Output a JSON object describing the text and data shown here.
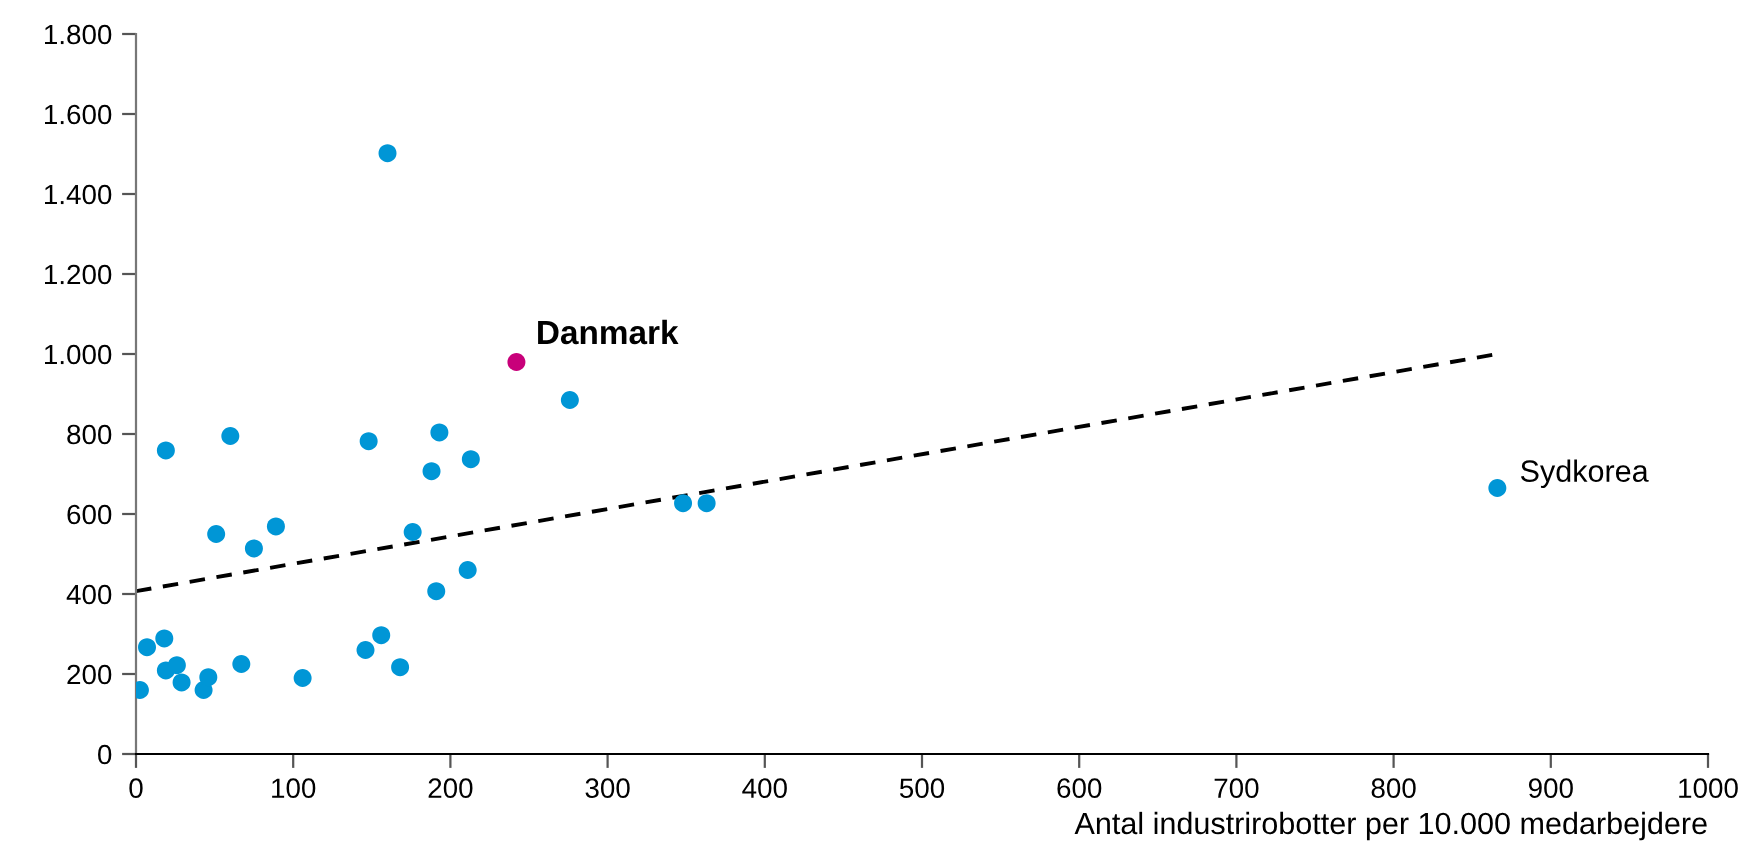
{
  "chart_data": {
    "type": "scatter",
    "xlabel": "Antal industrirobotter per 10.000 medarbejdere",
    "xlim": [
      0,
      1000
    ],
    "xticks": [
      0,
      100,
      200,
      300,
      400,
      500,
      600,
      700,
      800,
      900,
      1000
    ],
    "ylim": [
      0,
      1800
    ],
    "yticks": [
      0,
      200,
      400,
      600,
      800,
      {
        "value": 1000,
        "label": "1.000"
      },
      {
        "value": 1200,
        "label": "1.200"
      },
      {
        "value": 1400,
        "label": "1.400"
      },
      {
        "value": 1600,
        "label": "1.600"
      },
      {
        "value": 1800,
        "label": "1.800"
      }
    ],
    "grid": false,
    "legend": false,
    "marker": "circle",
    "series": [
      {
        "color": "#0096d6",
        "x": [
          2.5,
          7,
          18,
          19,
          26,
          29,
          19,
          43,
          46,
          60,
          51,
          67,
          75,
          89,
          106,
          148,
          146,
          156,
          168,
          176,
          188,
          193,
          191,
          211,
          213,
          276,
          348,
          363,
          160,
          866
        ],
        "values": [
          160,
          267,
          289,
          209,
          222,
          179,
          759,
          160,
          192,
          795,
          550,
          225,
          514,
          569,
          190,
          782,
          260,
          297,
          217,
          555,
          707,
          804,
          407,
          460,
          737,
          885,
          627,
          627,
          1502,
          665
        ]
      },
      {
        "name": "Danmark",
        "color": "#c8007a",
        "x": [
          242
        ],
        "values": [
          980
        ]
      },
      {
        "type": "line",
        "color": "#000000",
        "line_style": "dashed",
        "marker": "none",
        "x": [
          0,
          866
        ],
        "values": [
          407,
          1000
        ]
      }
    ],
    "annotations": [
      {
        "text": "Sydkorea",
        "x": 866,
        "y": 665
      }
    ]
  }
}
